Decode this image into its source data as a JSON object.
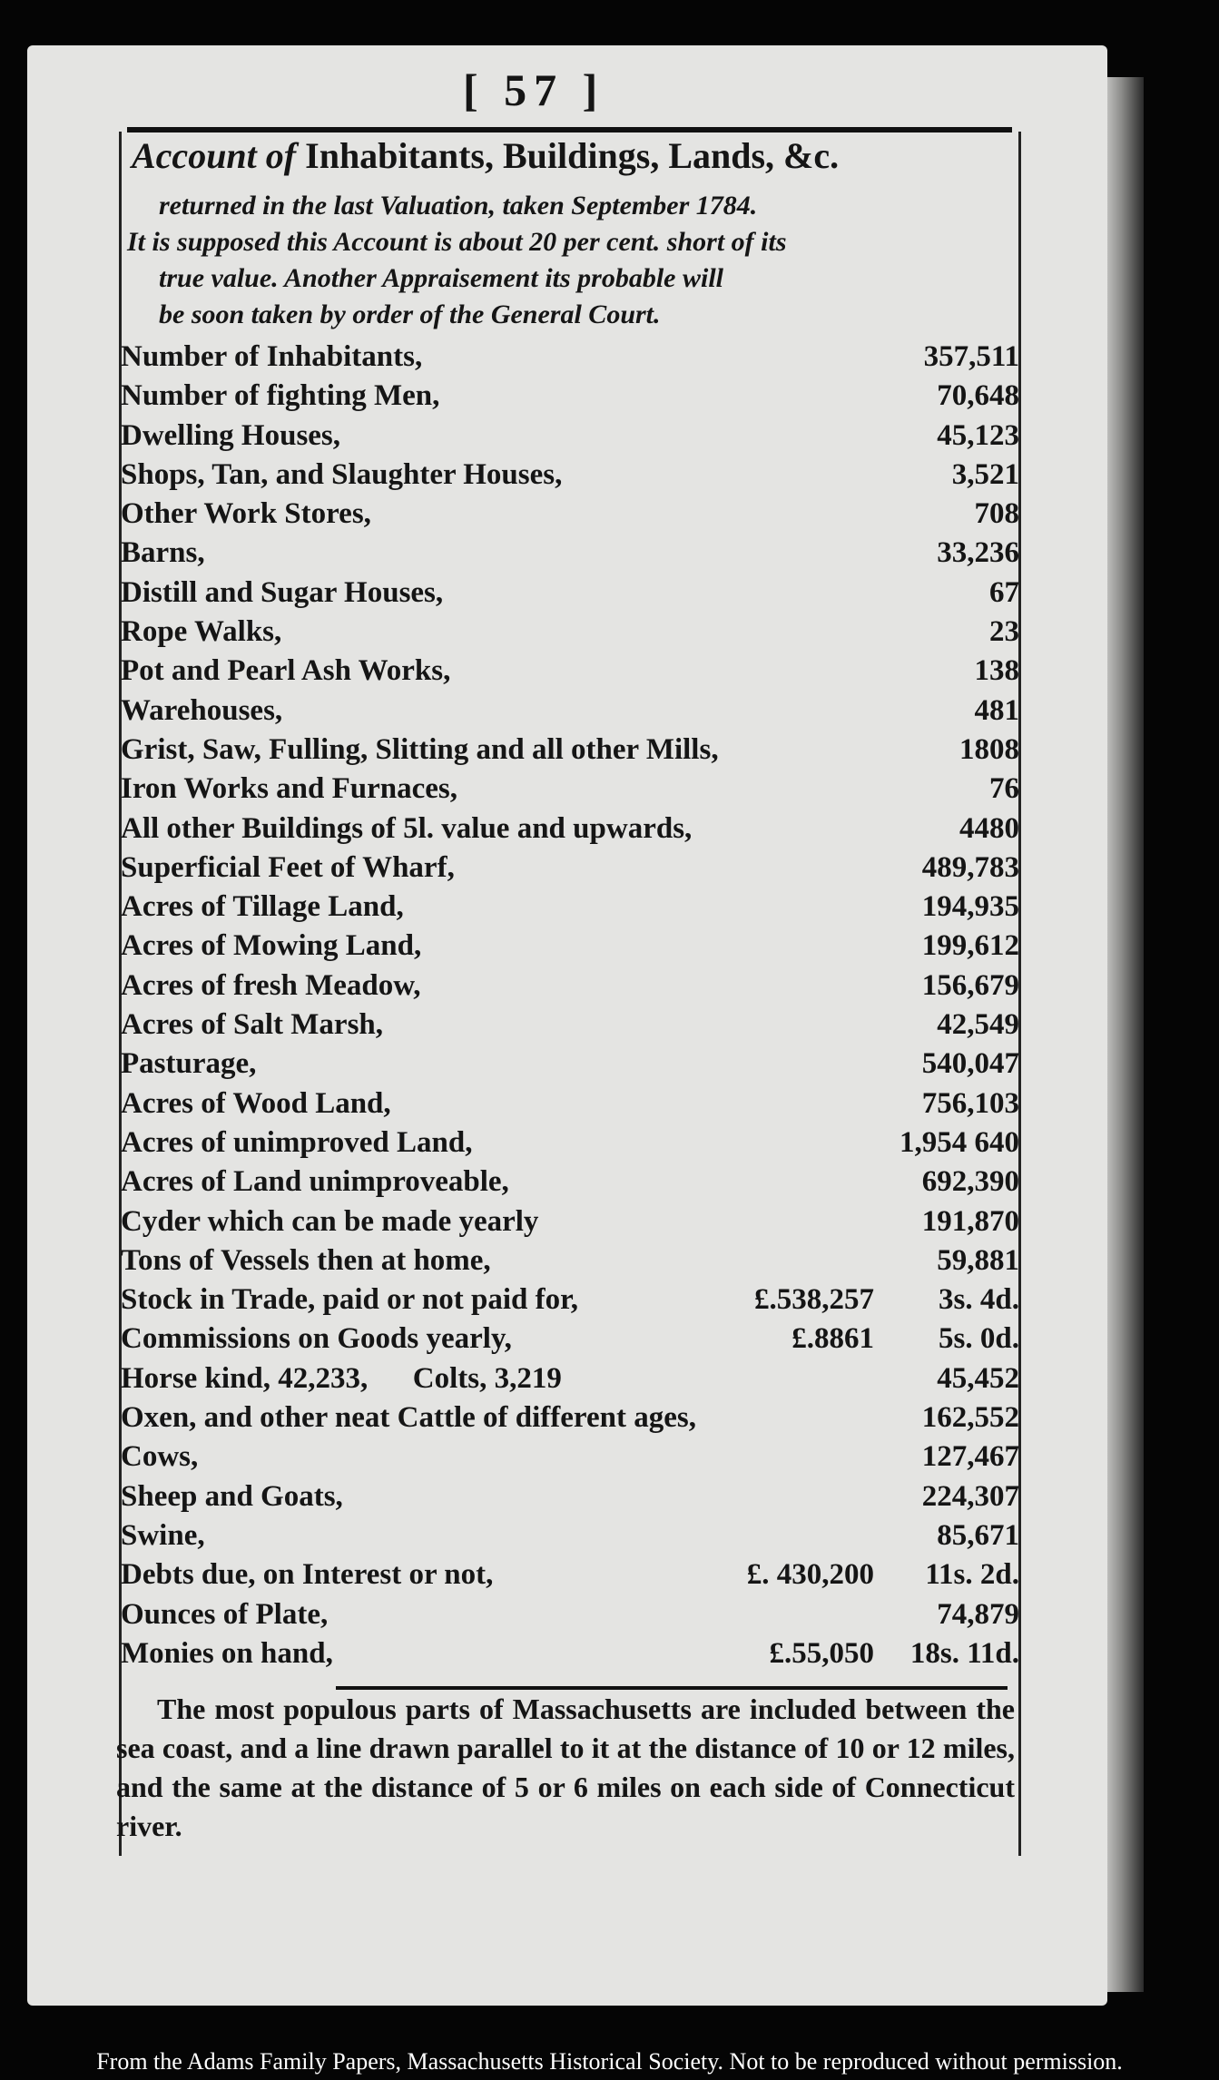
{
  "page_number": "[ 57 ]",
  "heading": {
    "italic": "Account of",
    "roman": "Inhabitants, Buildings, Lands, &c."
  },
  "subheading": [
    "returned in the last Valuation, taken September 1784.",
    "It is supposed this Account is about 20 per cent. short of its",
    "true value. Another Appraisement its probable will",
    "be soon taken by order of the General Court."
  ],
  "rows": [
    {
      "label": "Number of Inhabitants,",
      "value": "357,511"
    },
    {
      "label": "Number of fighting Men,",
      "value": "70,648"
    },
    {
      "label": "Dwelling Houses,",
      "value": "45,123"
    },
    {
      "label": "Shops, Tan, and Slaughter Houses,",
      "value": "3,521"
    },
    {
      "label": "Other Work Stores,",
      "value": "708"
    },
    {
      "label": "Barns,",
      "value": "33,236"
    },
    {
      "label": "Distill and Sugar Houses,",
      "value": "67"
    },
    {
      "label": "Rope Walks,",
      "value": "23"
    },
    {
      "label": "Pot and Pearl Ash Works,",
      "value": "138"
    },
    {
      "label": "Warehouses,",
      "value": "481"
    },
    {
      "label": "Grist, Saw, Fulling, Slitting and all other Mills,",
      "value": "1808"
    },
    {
      "label": "Iron Works and Furnaces,",
      "value": "76"
    },
    {
      "label": "All other Buildings of 5l. value and upwards,",
      "value": "4480"
    },
    {
      "label": "Superficial Feet of Wharf,",
      "value": "489,783"
    },
    {
      "label": "Acres of Tillage Land,",
      "value": "194,935"
    },
    {
      "label": "Acres of Mowing Land,",
      "value": "199,612"
    },
    {
      "label": "Acres of fresh Meadow,",
      "value": "156,679"
    },
    {
      "label": "Acres of Salt Marsh,",
      "value": "42,549"
    },
    {
      "label": "Pasturage,",
      "value": "540,047"
    },
    {
      "label": "Acres of Wood Land,",
      "value": "756,103"
    },
    {
      "label": "Acres of unimproved Land,",
      "value": "1,954 640"
    },
    {
      "label": "Acres of Land unimproveable,",
      "value": "692,390"
    },
    {
      "label": "Cyder which can be made yearly",
      "value": "191,870"
    },
    {
      "label": "Tons of Vessels then at home,",
      "value": "59,881"
    },
    {
      "label": "Stock in Trade, paid or not paid for,",
      "amount": "£.538,257",
      "value": "3s. 4d."
    },
    {
      "label": "Commissions on Goods yearly,",
      "amount": "£.8861",
      "value": "5s. 0d."
    },
    {
      "label": "Horse kind, 42,233,      Colts, 3,219",
      "value": "45,452"
    },
    {
      "label": "Oxen, and other neat Cattle of different ages,",
      "value": "162,552"
    },
    {
      "label": "Cows,",
      "value": "127,467"
    },
    {
      "label": "Sheep and Goats,",
      "value": "224,307"
    },
    {
      "label": "Swine,",
      "value": "85,671"
    },
    {
      "label": "Debts due, on Interest or not,",
      "amount": "£. 430,200",
      "value": "11s. 2d."
    },
    {
      "label": "Ounces of Plate,",
      "value": "74,879"
    },
    {
      "label": "Monies on hand,",
      "amount": "£.55,050",
      "value": "18s. 11d."
    }
  ],
  "note": "The most populous parts of Massachusetts are included between the sea coast, and a line drawn parallel to it at the distance of 10 or 12 miles, and the same at the distance of 5 or 6 miles on each side of Connecticut river.",
  "caption": "From the Adams Family Papers, Massachusetts Historical Society. Not to be reproduced without permission."
}
